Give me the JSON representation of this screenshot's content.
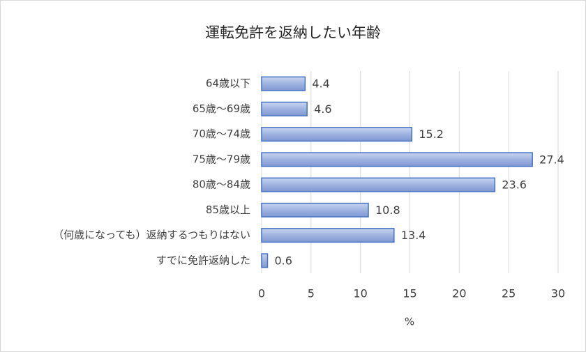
{
  "chart_data": {
    "type": "bar",
    "orientation": "horizontal",
    "title": "運転免許を返納したい年齢",
    "categories": [
      "64歳以下",
      "65歳～69歳",
      "70歳～74歳",
      "75歳～79歳",
      "80歳～84歳",
      "85歳以上",
      "（何歳になっても）返納するつもりはない",
      "すでに免許返納した"
    ],
    "values": [
      4.4,
      4.6,
      15.2,
      27.4,
      23.6,
      10.8,
      13.4,
      0.6
    ],
    "color": "#9fb3e0",
    "edge_color": "#4472c4",
    "x_label": "%",
    "xlim": [
      0,
      30
    ],
    "xticks": [
      0,
      5,
      10,
      15,
      20,
      25,
      30
    ],
    "grid": true
  }
}
